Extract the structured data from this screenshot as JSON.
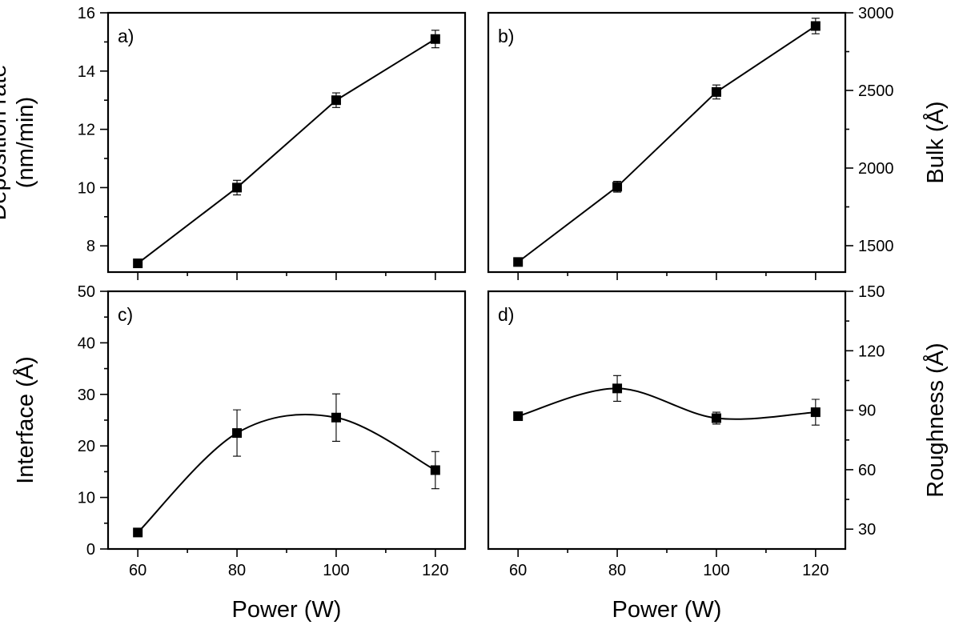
{
  "x_axis_title": "Power (W)",
  "chart_data": [
    {
      "id": "a",
      "panel_label": "a)",
      "type": "line",
      "smooth": false,
      "x": [
        60,
        80,
        100,
        120
      ],
      "y": [
        7.4,
        10.0,
        13.0,
        15.1
      ],
      "y_err": [
        0.1,
        0.25,
        0.25,
        0.3
      ],
      "xlim": [
        54,
        126
      ],
      "ylim": [
        7.1,
        16
      ],
      "x_ticks": [
        60,
        80,
        100,
        120
      ],
      "x_minor_ticks": [
        70,
        90,
        110
      ],
      "x_tick_labels_shown": false,
      "y_ticks": [
        8,
        10,
        12,
        14,
        16
      ],
      "y_tick_labels": [
        "8",
        "10",
        "12",
        "14",
        "16"
      ],
      "y_minor_ticks": [
        9,
        11,
        13,
        15
      ],
      "y_axis_side": "left",
      "ylabel_lines": [
        "Deposition rate",
        "(nm/min)"
      ],
      "xlabel": ""
    },
    {
      "id": "b",
      "panel_label": "b)",
      "type": "line",
      "smooth": false,
      "x": [
        60,
        80,
        100,
        120
      ],
      "y": [
        1395,
        1880,
        2490,
        2915
      ],
      "y_err": [
        10,
        35,
        45,
        50
      ],
      "xlim": [
        54,
        126
      ],
      "ylim": [
        1330,
        3000
      ],
      "x_ticks": [
        60,
        80,
        100,
        120
      ],
      "x_minor_ticks": [
        70,
        90,
        110
      ],
      "x_tick_labels_shown": false,
      "y_ticks": [
        1500,
        2000,
        2500,
        3000
      ],
      "y_tick_labels": [
        "1500",
        "2000",
        "2500",
        "3000"
      ],
      "y_minor_ticks": [
        1750,
        2250,
        2750
      ],
      "y_axis_side": "right",
      "ylabel_lines": [
        "Bulk (Å)"
      ],
      "xlabel": ""
    },
    {
      "id": "c",
      "panel_label": "c)",
      "type": "line",
      "smooth": true,
      "x": [
        60,
        80,
        100,
        120
      ],
      "y": [
        3.2,
        22.5,
        25.5,
        15.3
      ],
      "y_err": [
        0.3,
        4.5,
        4.6,
        3.6
      ],
      "xlim": [
        54,
        126
      ],
      "ylim": [
        0,
        50
      ],
      "x_ticks": [
        60,
        80,
        100,
        120
      ],
      "x_tick_labels": [
        "60",
        "80",
        "100",
        "120"
      ],
      "x_minor_ticks": [
        70,
        90,
        110
      ],
      "x_tick_labels_shown": true,
      "y_ticks": [
        0,
        10,
        20,
        30,
        40,
        50
      ],
      "y_tick_labels": [
        "0",
        "10",
        "20",
        "30",
        "40",
        "50"
      ],
      "y_minor_ticks": [
        5,
        15,
        25,
        35,
        45
      ],
      "y_axis_side": "left",
      "ylabel_lines": [
        "Interface (Å)"
      ],
      "xlabel": "Power (W)"
    },
    {
      "id": "d",
      "panel_label": "d)",
      "type": "line",
      "smooth": true,
      "x": [
        60,
        80,
        100,
        120
      ],
      "y": [
        87,
        101,
        86,
        89
      ],
      "y_err": [
        1,
        6.5,
        3,
        6.5
      ],
      "xlim": [
        54,
        126
      ],
      "ylim": [
        20,
        150
      ],
      "x_ticks": [
        60,
        80,
        100,
        120
      ],
      "x_tick_labels": [
        "60",
        "80",
        "100",
        "120"
      ],
      "x_minor_ticks": [
        70,
        90,
        110
      ],
      "x_tick_labels_shown": true,
      "y_ticks": [
        30,
        60,
        90,
        120,
        150
      ],
      "y_tick_labels": [
        "30",
        "60",
        "90",
        "120",
        "150"
      ],
      "y_minor_ticks": [
        45,
        75,
        105,
        135
      ],
      "y_axis_side": "right",
      "ylabel_lines": [
        "Roughness (Å)"
      ],
      "xlabel": "Power (W)"
    }
  ]
}
